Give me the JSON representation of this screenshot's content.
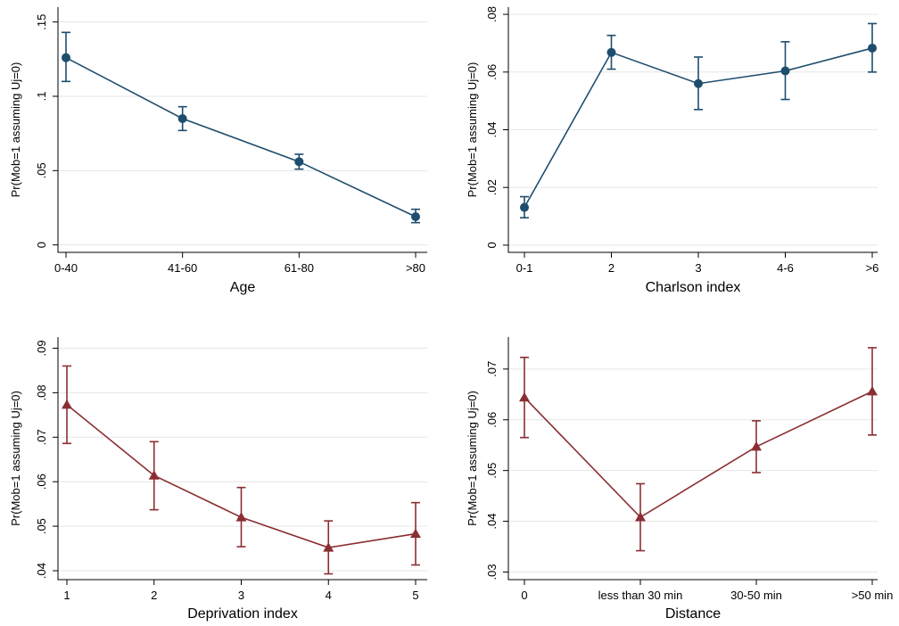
{
  "chart_data": [
    {
      "type": "line",
      "xlabel": "Age",
      "ylabel": "Pr(Mob=1 assuming Uj=0)",
      "categories": [
        "0-40",
        "41-60",
        "61-80",
        ">80"
      ],
      "yticks": [
        0,
        0.05,
        0.1,
        0.15
      ],
      "ytick_labels": [
        "0",
        ".05",
        ".1",
        ".15"
      ],
      "ylim": [
        -0.005,
        0.16
      ],
      "marker": "circle",
      "color": "#1e4d6e",
      "series": [
        {
          "values": [
            0.126,
            0.085,
            0.056,
            0.019
          ],
          "ci_low": [
            0.11,
            0.077,
            0.051,
            0.015
          ],
          "ci_high": [
            0.143,
            0.093,
            0.061,
            0.024
          ]
        }
      ],
      "grid": true
    },
    {
      "type": "line",
      "xlabel": "Charlson index",
      "ylabel": "Pr(Mob=1 assuming Uj=0)",
      "categories": [
        "0-1",
        "2",
        "3",
        "4-6",
        ">6"
      ],
      "yticks": [
        0,
        0.02,
        0.04,
        0.06,
        0.08
      ],
      "ytick_labels": [
        "0",
        ".02",
        ".04",
        ".06",
        ".08"
      ],
      "ylim": [
        -0.0025,
        0.0825
      ],
      "marker": "circle",
      "color": "#1e4d6e",
      "series": [
        {
          "values": [
            0.0131,
            0.0668,
            0.056,
            0.0604,
            0.0683
          ],
          "ci_low": [
            0.0095,
            0.061,
            0.047,
            0.0505,
            0.06
          ],
          "ci_high": [
            0.0168,
            0.0727,
            0.0652,
            0.0705,
            0.0768
          ]
        }
      ],
      "grid": true
    },
    {
      "type": "line",
      "xlabel": "Deprivation index",
      "ylabel": "Pr(Mob=1 assuming Uj=0)",
      "categories": [
        "1",
        "2",
        "3",
        "4",
        "5"
      ],
      "yticks": [
        0.04,
        0.05,
        0.06,
        0.07,
        0.08,
        0.09
      ],
      "ytick_labels": [
        ".04",
        ".05",
        ".06",
        ".07",
        ".08",
        ".09"
      ],
      "ylim": [
        0.038,
        0.0925
      ],
      "marker": "triangle",
      "color": "#8b2e33",
      "series": [
        {
          "values": [
            0.0773,
            0.0614,
            0.052,
            0.0452,
            0.0483
          ],
          "ci_low": [
            0.0686,
            0.0537,
            0.0454,
            0.0393,
            0.0413
          ],
          "ci_high": [
            0.086,
            0.069,
            0.0587,
            0.0512,
            0.0553
          ]
        }
      ],
      "grid": true
    },
    {
      "type": "line",
      "xlabel": "Distance",
      "ylabel": "Pr(Mob=1 assuming Uj=0)",
      "categories": [
        "0",
        "less than 30 min",
        "30-50 min",
        ">50 min"
      ],
      "yticks": [
        0.03,
        0.04,
        0.05,
        0.06,
        0.07
      ],
      "ytick_labels": [
        ".03",
        ".04",
        ".05",
        ".06",
        ".07"
      ],
      "ylim": [
        0.0285,
        0.0763
      ],
      "marker": "triangle",
      "color": "#8b2e33",
      "series": [
        {
          "values": [
            0.0644,
            0.0408,
            0.0547,
            0.0656
          ],
          "ci_low": [
            0.0565,
            0.0342,
            0.0496,
            0.057
          ],
          "ci_high": [
            0.0723,
            0.0474,
            0.0598,
            0.0742
          ]
        }
      ],
      "grid": true
    }
  ]
}
